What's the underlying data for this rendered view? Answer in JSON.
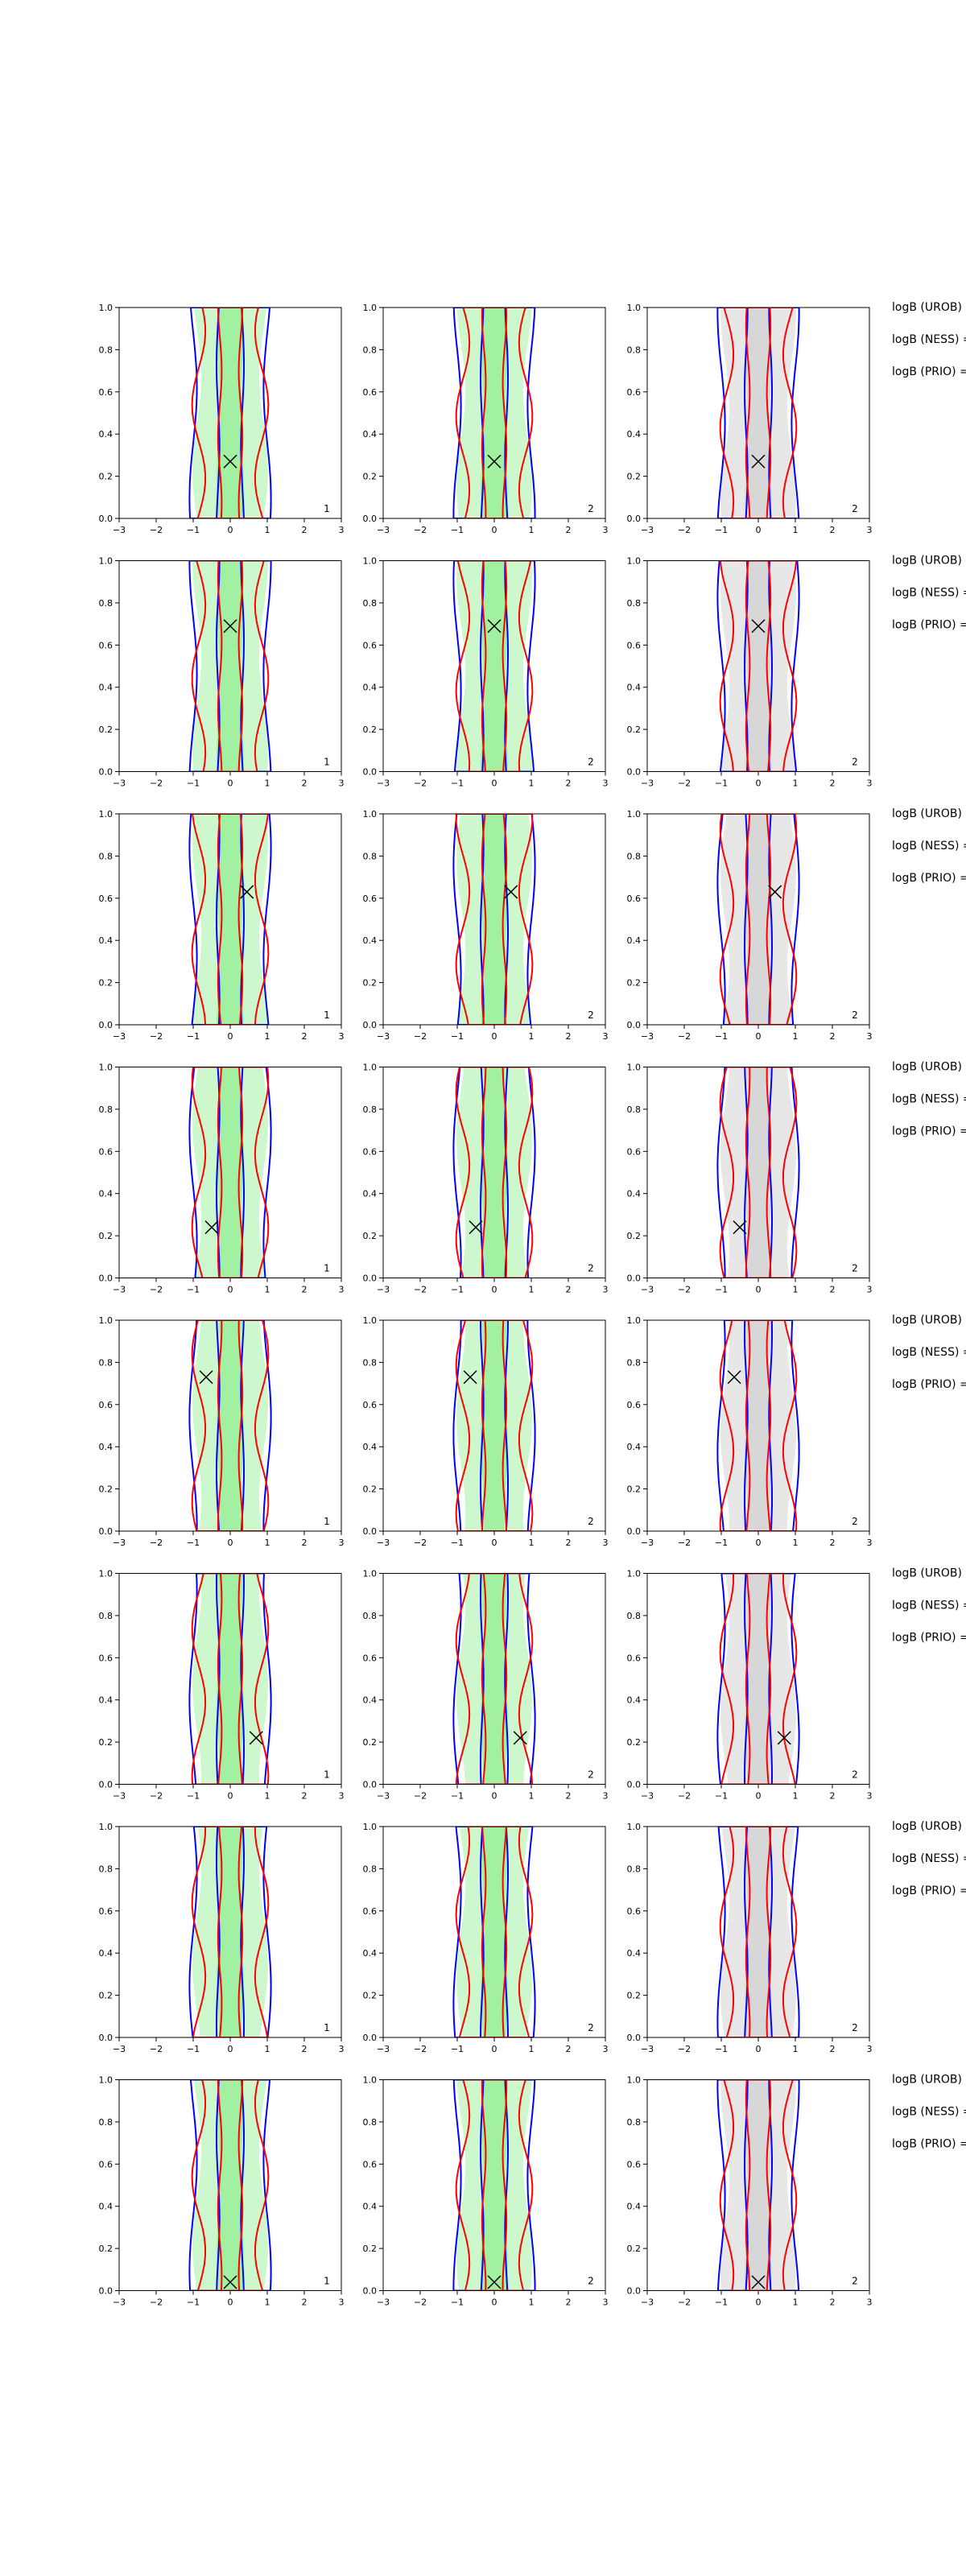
{
  "chart_data": {
    "type": "contour",
    "layout": {
      "rows": 8,
      "cols": 3
    },
    "axes": {
      "xlim": [
        -3,
        3
      ],
      "ylim": [
        0.0,
        1.0
      ],
      "xticks": [
        "−3",
        "−2",
        "−1",
        "0",
        "1",
        "2",
        "3"
      ],
      "yticks": [
        "0.0",
        "0.2",
        "0.4",
        "0.6",
        "0.8",
        "1.0"
      ],
      "xtick_values": [
        -3,
        -2,
        -1,
        0,
        1,
        2,
        3
      ],
      "ytick_values": [
        0,
        0.2,
        0.4,
        0.6,
        0.8,
        1.0
      ],
      "grid": false
    },
    "colors": {
      "blue_contour": "#0000ff",
      "red_contour": "#ff0000",
      "green_fill": "#90ee90",
      "grey_fill": "#d3d3d3",
      "marker": "#000000"
    },
    "series": [
      {
        "color": "blue_contour"
      },
      {
        "color": "red_contour"
      },
      {
        "color": "green_fill"
      },
      {
        "color": "grey_fill"
      }
    ],
    "panel_corner_labels": [
      "1",
      "2",
      "2"
    ],
    "rows": [
      {
        "marker": [
          0.0,
          0.27
        ],
        "side_labels": [
          "logB (UROB) =",
          "logB (NESS) =",
          "logB (PRIO) ="
        ]
      },
      {
        "marker": [
          0.0,
          0.69
        ],
        "side_labels": [
          "logB (UROB) =",
          "logB (NESS) =",
          "logB (PRIO) ="
        ]
      },
      {
        "marker": [
          0.45,
          0.63
        ],
        "side_labels": [
          "logB (UROB) =",
          "logB (NESS) =",
          "logB (PRIO) ="
        ]
      },
      {
        "marker": [
          -0.5,
          0.24
        ],
        "side_labels": [
          "logB (UROB) =",
          "logB (NESS) =",
          "logB (PRIO) ="
        ]
      },
      {
        "marker": [
          -0.65,
          0.73
        ],
        "side_labels": [
          "logB (UROB) =",
          "logB (NESS) =",
          "logB (PRIO) ="
        ]
      },
      {
        "marker": [
          0.7,
          0.22
        ],
        "side_labels": [
          "logB (UROB) =",
          "logB (NESS) =",
          "logB (PRIO) ="
        ]
      },
      {
        "marker": null,
        "side_labels": [
          "logB (UROB) =",
          "logB (NESS) =",
          "logB (PRIO) ="
        ]
      },
      {
        "marker": [
          0.0,
          0.04
        ],
        "side_labels": [
          "logB (UROB) =",
          "logB (NESS) =",
          "logB (PRIO) ="
        ]
      }
    ]
  }
}
